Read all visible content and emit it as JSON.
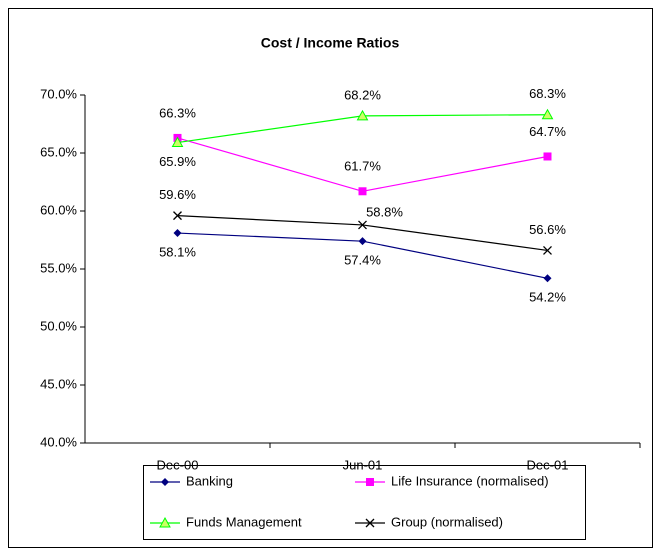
{
  "chart_data": {
    "type": "line",
    "title": "Cost / Income Ratios",
    "categories": [
      "Dec-00",
      "Jun-01",
      "Dec-01"
    ],
    "series": [
      {
        "name": "Banking",
        "color": "#000080",
        "marker": "diamond",
        "values": [
          58.1,
          57.4,
          54.2
        ],
        "value_labels": [
          "58.1%",
          "57.4%",
          "54.2%"
        ]
      },
      {
        "name": "Life Insurance (normalised)",
        "color": "#ff00ff",
        "marker": "square",
        "values": [
          66.3,
          61.7,
          64.7
        ],
        "value_labels": [
          "66.3%",
          "61.7%",
          "64.7%"
        ]
      },
      {
        "name": "Funds Management",
        "color": "#00ff00",
        "marker": "triangle",
        "values": [
          65.9,
          68.2,
          68.3
        ],
        "value_labels": [
          "65.9%",
          "68.2%",
          "68.3%"
        ]
      },
      {
        "name": "Group (normalised)",
        "color": "#000000",
        "marker": "x",
        "values": [
          59.6,
          58.8,
          56.6
        ],
        "value_labels": [
          "59.6%",
          "58.8%",
          "56.6%"
        ]
      }
    ],
    "ylim": [
      40,
      70
    ],
    "yticks": [
      {
        "value": 40,
        "label": "40.0%"
      },
      {
        "value": 45,
        "label": "45.0%"
      },
      {
        "value": 50,
        "label": "50.0%"
      },
      {
        "value": 55,
        "label": "55.0%"
      },
      {
        "value": 60,
        "label": "60.0%"
      },
      {
        "value": 65,
        "label": "65.0%"
      },
      {
        "value": 70,
        "label": "70.0%"
      }
    ],
    "grid": false
  }
}
